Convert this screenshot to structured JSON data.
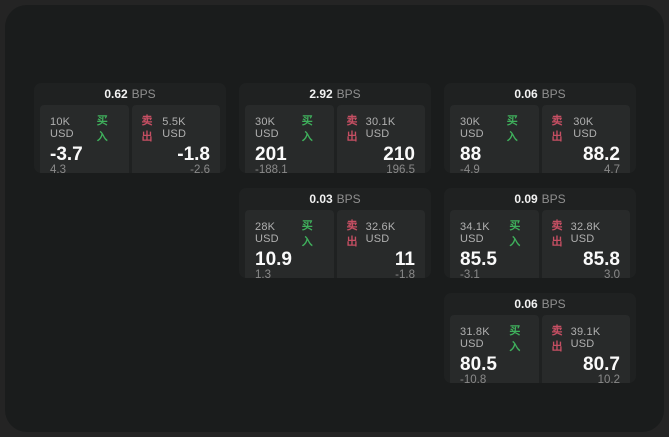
{
  "page": {
    "background": "#242424",
    "panel_background": "#1a1c1c",
    "buy_color": "#3fb05c",
    "sell_color": "#c64f63"
  },
  "cards": [
    {
      "bps": "0.62",
      "unit": "BPS",
      "buy": {
        "size": "10K USD",
        "label": "买入",
        "price": "-3.7",
        "delta": "4.3"
      },
      "sell": {
        "label": "卖出",
        "size": "5.5K USD",
        "price": "-1.8",
        "delta": "-2.6"
      }
    },
    {
      "bps": "2.92",
      "unit": "BPS",
      "buy": {
        "size": "30K USD",
        "label": "买入",
        "price": "201",
        "delta": "-188.1"
      },
      "sell": {
        "label": "卖出",
        "size": "30.1K USD",
        "price": "210",
        "delta": "196.5"
      }
    },
    {
      "bps": "0.06",
      "unit": "BPS",
      "buy": {
        "size": "30K USD",
        "label": "买入",
        "price": "88",
        "delta": "-4.9"
      },
      "sell": {
        "label": "卖出",
        "size": "30K USD",
        "price": "88.2",
        "delta": "4.7"
      }
    },
    {
      "bps": "0.03",
      "unit": "BPS",
      "buy": {
        "size": "28K USD",
        "label": "买入",
        "price": "10.9",
        "delta": "1.3"
      },
      "sell": {
        "label": "卖出",
        "size": "32.6K USD",
        "price": "11",
        "delta": "-1.8"
      }
    },
    {
      "bps": "0.09",
      "unit": "BPS",
      "buy": {
        "size": "34.1K USD",
        "label": "买入",
        "price": "85.5",
        "delta": "-3.1"
      },
      "sell": {
        "label": "卖出",
        "size": "32.8K USD",
        "price": "85.8",
        "delta": "3.0"
      }
    },
    {
      "bps": "0.06",
      "unit": "BPS",
      "buy": {
        "size": "31.8K USD",
        "label": "买入",
        "price": "80.5",
        "delta": "-10.8"
      },
      "sell": {
        "label": "卖出",
        "size": "39.1K USD",
        "price": "80.7",
        "delta": "10.2"
      }
    }
  ]
}
